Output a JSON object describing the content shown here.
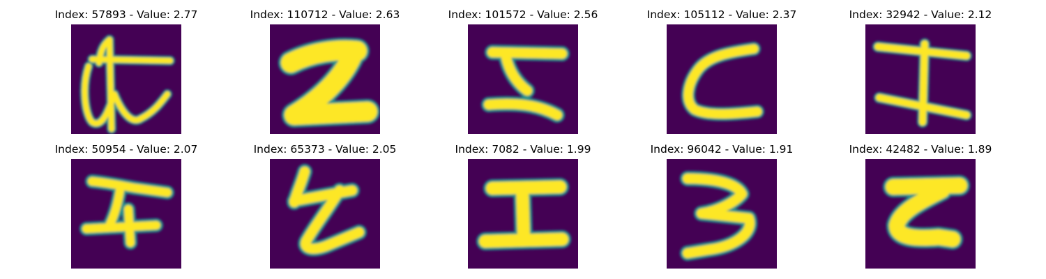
{
  "panels": [
    {
      "title": "Index: 57893 - Value: 2.77",
      "glyph": "glyph-1-image"
    },
    {
      "title": "Index: 110712 - Value: 2.63",
      "glyph": "glyph-2-image"
    },
    {
      "title": "Index: 101572 - Value: 2.56",
      "glyph": "glyph-3-image"
    },
    {
      "title": "Index: 105112 - Value: 2.37",
      "glyph": "glyph-4-image"
    },
    {
      "title": "Index: 32942 - Value: 2.12",
      "glyph": "glyph-5-image"
    },
    {
      "title": "Index: 50954 - Value: 2.07",
      "glyph": "glyph-6-image"
    },
    {
      "title": "Index: 65373 - Value: 2.05",
      "glyph": "glyph-7-image"
    },
    {
      "title": "Index: 7082 - Value: 1.99",
      "glyph": "glyph-8-image"
    },
    {
      "title": "Index: 96042 - Value: 1.91",
      "glyph": "glyph-9-image"
    },
    {
      "title": "Index: 42482 - Value: 1.89",
      "glyph": "glyph-10-image"
    }
  ],
  "colors": {
    "background": "#440154",
    "stroke_edge": "#21918c",
    "stroke_core": "#fde725"
  }
}
